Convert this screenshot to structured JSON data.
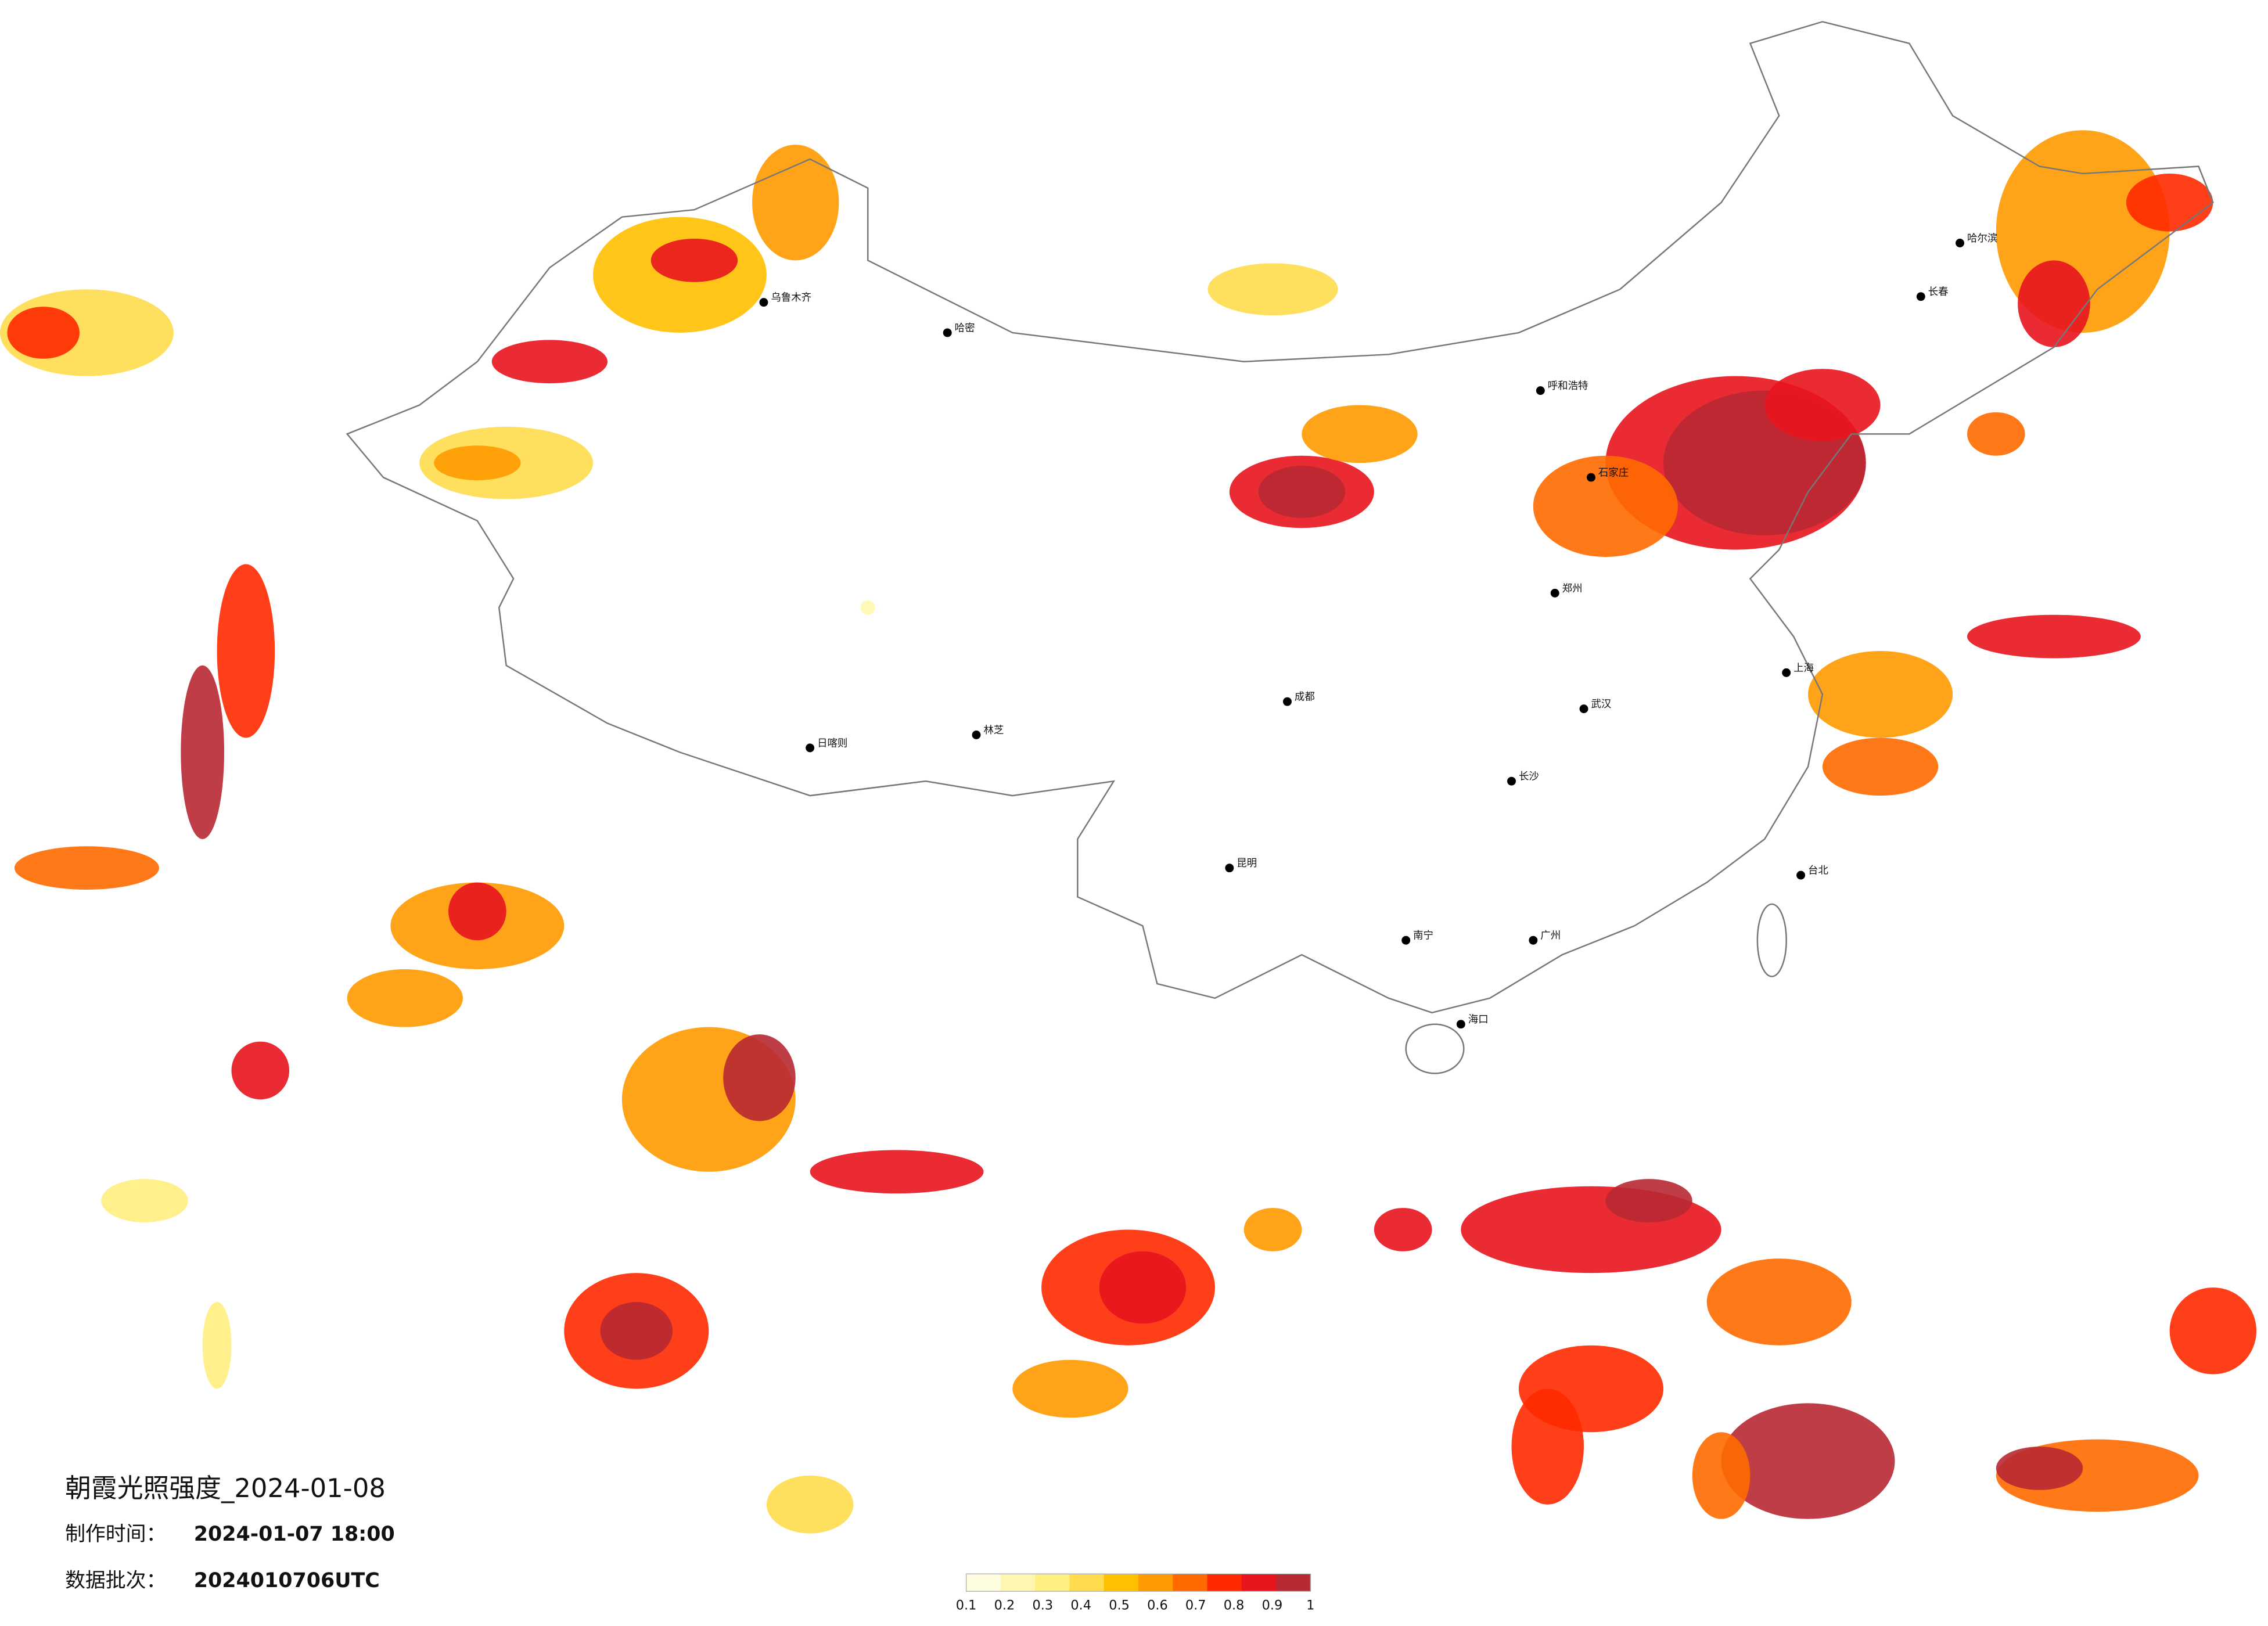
{
  "header": {
    "title": "朝霞光照强度_2024-01-08",
    "made_label": "制作时间：",
    "made_time": "2024-01-07 18:00",
    "batch_label": "数据批次：",
    "batch": "2024010706UTC"
  },
  "colorbar": {
    "ticks": [
      0.1,
      0.2,
      0.3,
      0.4,
      0.5,
      0.6,
      0.7,
      0.8,
      0.9,
      1
    ],
    "colors": [
      "#fffde0",
      "#fff7b0",
      "#ffee80",
      "#ffdb4d",
      "#ffc000",
      "#ff9a00",
      "#ff6a00",
      "#ff2a00",
      "#e8141e",
      "#b82832"
    ]
  },
  "cities": [
    "乌鲁木齐",
    "哈密",
    "林芝",
    "日喀则",
    "呼和浩特",
    "石家庄",
    "郑州",
    "武汉",
    "长沙",
    "广州",
    "南宁",
    "海口",
    "昆明",
    "成都",
    "上海",
    "哈尔滨",
    "长春",
    "台北"
  ]
}
